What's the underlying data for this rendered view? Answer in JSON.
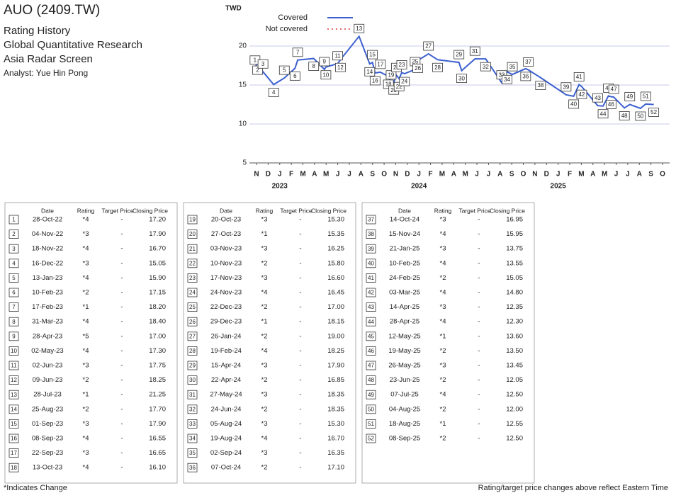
{
  "header": {
    "title": "AUO (2409.TW)",
    "lines": [
      "Rating History",
      "Global Quantitative Research",
      "Asia Radar Screen"
    ],
    "analyst": "Analyst: Yue Hin Pong"
  },
  "chart_data": {
    "type": "line",
    "y_label": "TWD",
    "ylim": [
      5,
      25
    ],
    "yticks": [
      5,
      10,
      15,
      20
    ],
    "grid": true,
    "x_months": [
      "N",
      "D",
      "J",
      "F",
      "M",
      "A",
      "M",
      "J",
      "J",
      "A",
      "S",
      "O",
      "N",
      "D",
      "J",
      "F",
      "M",
      "A",
      "M",
      "J",
      "J",
      "A",
      "S",
      "O",
      "N",
      "D",
      "J",
      "F",
      "M",
      "A",
      "M",
      "J",
      "J",
      "A",
      "S",
      "O"
    ],
    "x_years": [
      "2023",
      "2024",
      "2025"
    ],
    "legend": [
      {
        "name": "Covered",
        "color": "#3a5fd0",
        "style": "solid"
      },
      {
        "name": "Not covered",
        "color": "#e03b3b",
        "style": "dotted"
      }
    ]
  },
  "table": {
    "columns": [
      "Date",
      "Rating",
      "Target Price",
      "Closing Price"
    ],
    "rows": [
      {
        "no": 1,
        "date": "28-Oct-22",
        "rating": "*4",
        "target": "-",
        "close": "17.20"
      },
      {
        "no": 2,
        "date": "04-Nov-22",
        "rating": "*3",
        "target": "-",
        "close": "17.90"
      },
      {
        "no": 3,
        "date": "18-Nov-22",
        "rating": "*4",
        "target": "-",
        "close": "16.70"
      },
      {
        "no": 4,
        "date": "16-Dec-22",
        "rating": "*3",
        "target": "-",
        "close": "15.05"
      },
      {
        "no": 5,
        "date": "13-Jan-23",
        "rating": "*4",
        "target": "-",
        "close": "15.90"
      },
      {
        "no": 6,
        "date": "10-Feb-23",
        "rating": "*2",
        "target": "-",
        "close": "17.15"
      },
      {
        "no": 7,
        "date": "17-Feb-23",
        "rating": "*1",
        "target": "-",
        "close": "18.20"
      },
      {
        "no": 8,
        "date": "31-Mar-23",
        "rating": "*4",
        "target": "-",
        "close": "18.40"
      },
      {
        "no": 9,
        "date": "28-Apr-23",
        "rating": "*5",
        "target": "-",
        "close": "17.00"
      },
      {
        "no": 10,
        "date": "02-May-23",
        "rating": "*4",
        "target": "-",
        "close": "17.30"
      },
      {
        "no": 11,
        "date": "02-Jun-23",
        "rating": "*3",
        "target": "-",
        "close": "17.75"
      },
      {
        "no": 12,
        "date": "09-Jun-23",
        "rating": "*2",
        "target": "-",
        "close": "18.25"
      },
      {
        "no": 13,
        "date": "28-Jul-23",
        "rating": "*1",
        "target": "-",
        "close": "21.25"
      },
      {
        "no": 14,
        "date": "25-Aug-23",
        "rating": "*2",
        "target": "-",
        "close": "17.70"
      },
      {
        "no": 15,
        "date": "01-Sep-23",
        "rating": "*3",
        "target": "-",
        "close": "17.90"
      },
      {
        "no": 16,
        "date": "08-Sep-23",
        "rating": "*4",
        "target": "-",
        "close": "16.55"
      },
      {
        "no": 17,
        "date": "22-Sep-23",
        "rating": "*3",
        "target": "-",
        "close": "16.65"
      },
      {
        "no": 18,
        "date": "13-Oct-23",
        "rating": "*4",
        "target": "-",
        "close": "16.10"
      },
      {
        "no": 19,
        "date": "20-Oct-23",
        "rating": "*3",
        "target": "-",
        "close": "15.30"
      },
      {
        "no": 20,
        "date": "27-Oct-23",
        "rating": "*1",
        "target": "-",
        "close": "15.35"
      },
      {
        "no": 21,
        "date": "03-Nov-23",
        "rating": "*3",
        "target": "-",
        "close": "16.25"
      },
      {
        "no": 22,
        "date": "10-Nov-23",
        "rating": "*2",
        "target": "-",
        "close": "15.80"
      },
      {
        "no": 23,
        "date": "17-Nov-23",
        "rating": "*3",
        "target": "-",
        "close": "16.60"
      },
      {
        "no": 24,
        "date": "24-Nov-23",
        "rating": "*4",
        "target": "-",
        "close": "16.45"
      },
      {
        "no": 25,
        "date": "22-Dec-23",
        "rating": "*2",
        "target": "-",
        "close": "17.00"
      },
      {
        "no": 26,
        "date": "29-Dec-23",
        "rating": "*1",
        "target": "-",
        "close": "18.15"
      },
      {
        "no": 27,
        "date": "26-Jan-24",
        "rating": "*2",
        "target": "-",
        "close": "19.00"
      },
      {
        "no": 28,
        "date": "19-Feb-24",
        "rating": "*4",
        "target": "-",
        "close": "18.25"
      },
      {
        "no": 29,
        "date": "15-Apr-24",
        "rating": "*3",
        "target": "-",
        "close": "17.90"
      },
      {
        "no": 30,
        "date": "22-Apr-24",
        "rating": "*2",
        "target": "-",
        "close": "16.85"
      },
      {
        "no": 31,
        "date": "27-May-24",
        "rating": "*3",
        "target": "-",
        "close": "18.35"
      },
      {
        "no": 32,
        "date": "24-Jun-24",
        "rating": "*2",
        "target": "-",
        "close": "18.35"
      },
      {
        "no": 33,
        "date": "05-Aug-24",
        "rating": "*3",
        "target": "-",
        "close": "15.30"
      },
      {
        "no": 34,
        "date": "19-Aug-24",
        "rating": "*4",
        "target": "-",
        "close": "16.70"
      },
      {
        "no": 35,
        "date": "02-Sep-24",
        "rating": "*3",
        "target": "-",
        "close": "16.35"
      },
      {
        "no": 36,
        "date": "07-Oct-24",
        "rating": "*2",
        "target": "-",
        "close": "17.10"
      },
      {
        "no": 37,
        "date": "14-Oct-24",
        "rating": "*3",
        "target": "-",
        "close": "16.95"
      },
      {
        "no": 38,
        "date": "15-Nov-24",
        "rating": "*4",
        "target": "-",
        "close": "15.95"
      },
      {
        "no": 39,
        "date": "21-Jan-25",
        "rating": "*3",
        "target": "-",
        "close": "13.75"
      },
      {
        "no": 40,
        "date": "10-Feb-25",
        "rating": "*4",
        "target": "-",
        "close": "13.55"
      },
      {
        "no": 41,
        "date": "24-Feb-25",
        "rating": "*2",
        "target": "-",
        "close": "15.05"
      },
      {
        "no": 42,
        "date": "03-Mar-25",
        "rating": "*4",
        "target": "-",
        "close": "14.80"
      },
      {
        "no": 43,
        "date": "14-Apr-25",
        "rating": "*3",
        "target": "-",
        "close": "12.35"
      },
      {
        "no": 44,
        "date": "28-Apr-25",
        "rating": "*4",
        "target": "-",
        "close": "12.30"
      },
      {
        "no": 45,
        "date": "12-May-25",
        "rating": "*1",
        "target": "-",
        "close": "13.60"
      },
      {
        "no": 46,
        "date": "19-May-25",
        "rating": "*2",
        "target": "-",
        "close": "13.50"
      },
      {
        "no": 47,
        "date": "26-May-25",
        "rating": "*3",
        "target": "-",
        "close": "13.45"
      },
      {
        "no": 48,
        "date": "23-Jun-25",
        "rating": "*2",
        "target": "-",
        "close": "12.05"
      },
      {
        "no": 49,
        "date": "07-Jul-25",
        "rating": "*4",
        "target": "-",
        "close": "12.50"
      },
      {
        "no": 50,
        "date": "04-Aug-25",
        "rating": "*2",
        "target": "-",
        "close": "12.00"
      },
      {
        "no": 51,
        "date": "18-Aug-25",
        "rating": "*1",
        "target": "-",
        "close": "12.55"
      },
      {
        "no": 52,
        "date": "08-Sep-25",
        "rating": "*2",
        "target": "-",
        "close": "12.50"
      }
    ]
  },
  "footer": {
    "note": "*Indicates Change",
    "timezone": "Rating/target price changes above reflect Eastern Time"
  }
}
